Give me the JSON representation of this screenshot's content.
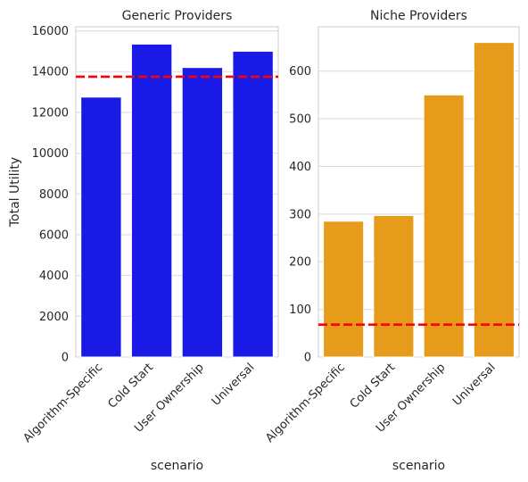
{
  "chart_data": [
    {
      "type": "bar",
      "title": "Generic Providers",
      "xlabel": "scenario",
      "ylabel": "Total Utility",
      "categories": [
        "Algorithm-Specific",
        "Cold Start",
        "User Ownership",
        "Universal"
      ],
      "values": [
        12750,
        15350,
        14200,
        15000
      ],
      "bar_color": "#1a1ae6",
      "reference_line": {
        "value": 13750,
        "color": "#ff0000",
        "style": "dashed"
      },
      "ylim": [
        0,
        16200
      ],
      "yticks": [
        0,
        2000,
        4000,
        6000,
        8000,
        10000,
        12000,
        14000,
        16000
      ],
      "grid": true
    },
    {
      "type": "bar",
      "title": "Niche Providers",
      "xlabel": "scenario",
      "ylabel": "",
      "categories": [
        "Algorithm-Specific",
        "Cold Start",
        "User Ownership",
        "Universal"
      ],
      "values": [
        285,
        297,
        550,
        660
      ],
      "bar_color": "#e69b1a",
      "reference_line": {
        "value": 68,
        "color": "#ff0000",
        "style": "dashed"
      },
      "ylim": [
        0,
        693
      ],
      "yticks": [
        0,
        100,
        200,
        300,
        400,
        500,
        600
      ],
      "grid": true
    }
  ]
}
